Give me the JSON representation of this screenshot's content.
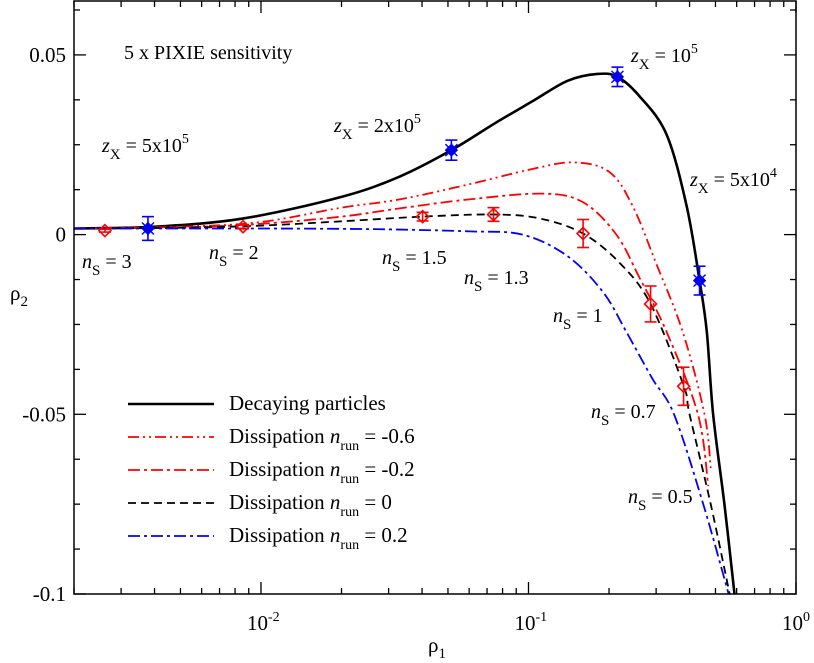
{
  "chart_data": {
    "type": "line",
    "title": "",
    "xlabel": "ρ1",
    "ylabel": "ρ2",
    "xscale": "log",
    "xlim": [
      0.002,
      1
    ],
    "ylim": [
      -0.1,
      0.065
    ],
    "grid": false,
    "legend_placement": "bottom-left",
    "x_tick_labels": [
      {
        "v": 0.01,
        "base": "10",
        "exp": "-2"
      },
      {
        "v": 0.1,
        "base": "10",
        "exp": "-1"
      },
      {
        "v": 1,
        "base": "10",
        "exp": "0"
      }
    ],
    "y_ticks": [
      0.05,
      0,
      -0.05,
      -0.1
    ],
    "y_tick_labels": [
      "0.05",
      "0",
      "-0.05",
      "-0.1"
    ],
    "series": [
      {
        "name": "Decaying particles",
        "color": "#000000",
        "style": "solid",
        "points": [
          [
            0.002,
            0.0017
          ],
          [
            0.004,
            0.0022
          ],
          [
            0.0086,
            0.0045
          ],
          [
            0.02,
            0.0105
          ],
          [
            0.0331,
            0.0162
          ],
          [
            0.0515,
            0.0235
          ],
          [
            0.075,
            0.031
          ],
          [
            0.104,
            0.0372
          ],
          [
            0.14,
            0.0428
          ],
          [
            0.181,
            0.0447
          ],
          [
            0.215,
            0.0439
          ],
          [
            0.26,
            0.0385
          ],
          [
            0.328,
            0.0279
          ],
          [
            0.39,
            0.008
          ],
          [
            0.436,
            -0.0128
          ],
          [
            0.464,
            -0.027
          ],
          [
            0.49,
            -0.05
          ],
          [
            0.54,
            -0.075
          ],
          [
            0.589,
            -0.1
          ]
        ]
      },
      {
        "name": "Dissipation n_run = -0.6",
        "color": "#ff0000",
        "style": "dash-dot-dot",
        "points": [
          [
            0.002,
            0.0017
          ],
          [
            0.005,
            0.0022
          ],
          [
            0.01,
            0.0035
          ],
          [
            0.02,
            0.0075
          ],
          [
            0.033,
            0.0098
          ],
          [
            0.06,
            0.014
          ],
          [
            0.1,
            0.018
          ],
          [
            0.146,
            0.0201
          ],
          [
            0.2,
            0.0175
          ],
          [
            0.245,
            0.008
          ],
          [
            0.3,
            -0.008
          ],
          [
            0.377,
            -0.027
          ],
          [
            0.455,
            -0.05
          ],
          [
            0.48,
            -0.065
          ]
        ]
      },
      {
        "name": "Dissipation n_run = -0.2",
        "color": "#ff0000",
        "style": "dash-dot",
        "points": [
          [
            0.002,
            0.0017
          ],
          [
            0.005,
            0.002
          ],
          [
            0.01,
            0.003
          ],
          [
            0.02,
            0.005
          ],
          [
            0.033,
            0.0073
          ],
          [
            0.06,
            0.0098
          ],
          [
            0.113,
            0.0114
          ],
          [
            0.16,
            0.009
          ],
          [
            0.213,
            0.0
          ],
          [
            0.26,
            -0.012
          ],
          [
            0.328,
            -0.027
          ],
          [
            0.43,
            -0.05
          ],
          [
            0.47,
            -0.07
          ]
        ]
      },
      {
        "name": "Dissipation n_run = 0",
        "color": "#000000",
        "style": "dashed",
        "points": [
          [
            0.002,
            0.0017
          ],
          [
            0.005,
            0.0019
          ],
          [
            0.01,
            0.0025
          ],
          [
            0.02,
            0.0037
          ],
          [
            0.04,
            0.005
          ],
          [
            0.074,
            0.0056
          ],
          [
            0.11,
            0.0045
          ],
          [
            0.16,
            0.0003
          ],
          [
            0.22,
            -0.008
          ],
          [
            0.286,
            -0.0193
          ],
          [
            0.38,
            -0.042
          ],
          [
            0.4,
            -0.05
          ],
          [
            0.48,
            -0.075
          ],
          [
            0.565,
            -0.1
          ]
        ]
      },
      {
        "name": "Dissipation n_run = 0.2",
        "color": "#0000ff",
        "style": "dash-dot",
        "points": [
          [
            0.002,
            0.0017
          ],
          [
            0.005,
            0.0017
          ],
          [
            0.01,
            0.0017
          ],
          [
            0.02,
            0.0016
          ],
          [
            0.033,
            0.0014
          ],
          [
            0.06,
            0.0009
          ],
          [
            0.095,
            0.0
          ],
          [
            0.14,
            -0.006
          ],
          [
            0.19,
            -0.016
          ],
          [
            0.232,
            -0.027
          ],
          [
            0.29,
            -0.04
          ],
          [
            0.35,
            -0.05
          ],
          [
            0.45,
            -0.075
          ],
          [
            0.56,
            -0.1
          ]
        ]
      }
    ],
    "markers": [
      {
        "group": "Decaying particles",
        "shape": "star-diamond",
        "color": "#0000ff",
        "points": [
          {
            "x": 0.00378,
            "y": 0.0017,
            "err": 0.0033
          },
          {
            "x": 0.0515,
            "y": 0.0235,
            "err": 0.0028
          },
          {
            "x": 0.215,
            "y": 0.0439,
            "err": 0.0027
          },
          {
            "x": 0.436,
            "y": -0.0128,
            "err": 0.004
          }
        ]
      },
      {
        "group": "Dissipation n_run = 0",
        "shape": "open-diamond",
        "color": "#ff0000",
        "points": [
          {
            "x": 0.00261,
            "y": 0.0011,
            "err": 0.0004
          },
          {
            "x": 0.00857,
            "y": 0.0022,
            "err": 0.0006
          },
          {
            "x": 0.0402,
            "y": 0.005,
            "err": 0.0012
          },
          {
            "x": 0.074,
            "y": 0.0056,
            "err": 0.0019
          },
          {
            "x": 0.16,
            "y": 0.0003,
            "err": 0.0039
          },
          {
            "x": 0.286,
            "y": -0.0193,
            "err": 0.005
          },
          {
            "x": 0.38,
            "y": -0.0422,
            "err": 0.0053
          }
        ]
      }
    ],
    "annotations": {
      "sensitivity": "5 x PIXIE sensitivity",
      "zx": [
        {
          "var": "z",
          "sub": "X",
          "text": " = 5x10",
          "sup": "5"
        },
        {
          "var": "z",
          "sub": "X",
          "text": " = 2x10",
          "sup": "5"
        },
        {
          "var": "z",
          "sub": "X",
          "text": " = 10",
          "sup": "5"
        },
        {
          "var": "z",
          "sub": "X",
          "text": " = 5x10",
          "sup": "4"
        }
      ],
      "ns": [
        {
          "var": "n",
          "sub": "S",
          "text": " = 3"
        },
        {
          "var": "n",
          "sub": "S",
          "text": " = 2"
        },
        {
          "var": "n",
          "sub": "S",
          "text": " = 1.5"
        },
        {
          "var": "n",
          "sub": "S",
          "text": " = 1.3"
        },
        {
          "var": "n",
          "sub": "S",
          "text": " = 1"
        },
        {
          "var": "n",
          "sub": "S",
          "text": " = 0.7"
        },
        {
          "var": "n",
          "sub": "S",
          "text": " = 0.5"
        }
      ]
    },
    "legend": [
      {
        "label": "Decaying particles"
      },
      {
        "label": "Dissipation ",
        "var": "n",
        "sub": "run",
        "text": " = -0.6"
      },
      {
        "label": "Dissipation ",
        "var": "n",
        "sub": "run",
        "text": " = -0.2"
      },
      {
        "label": "Dissipation ",
        "var": "n",
        "sub": "run",
        "text": " = 0"
      },
      {
        "label": "Dissipation ",
        "var": "n",
        "sub": "run",
        "text": " = 0.2"
      }
    ]
  }
}
